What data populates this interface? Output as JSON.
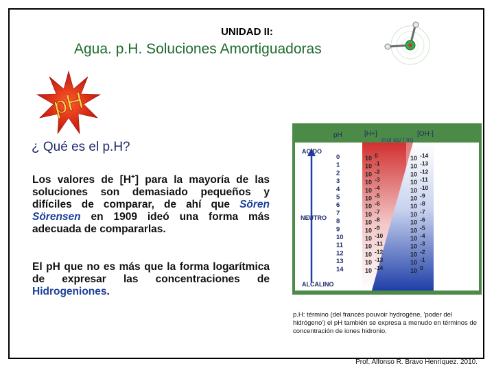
{
  "header": {
    "unit": "UNIDAD II:",
    "title": "Agua. p.H. Soluciones Amortiguadoras"
  },
  "badge": {
    "text": "pH",
    "color": "#e3241b"
  },
  "question": "¿ Qué es el p.H?",
  "paragraph1": {
    "a": "Los valores de [H",
    "sup": "+",
    "b": "] para la mayoría de las soluciones son demasiado pequeños y difíciles de comparar, de ahí que ",
    "name": "Sören Sörensen",
    "c": " en 1909 ideó una forma más adecuada de compararlas."
  },
  "paragraph2": {
    "a": "El pH que no es más que la forma logarítmica de expresar las concentraciones de ",
    "highlight": "Hidrogeniones",
    "b": "."
  },
  "scale": {
    "col_ph": "pH",
    "col_h": "[H+]",
    "col_oh": "[OH-]",
    "subtitle": "mol es/ l tro",
    "acido": "ACIDO",
    "neutro": "NEUTRO",
    "alcalino": "ALCALINO",
    "ph_values": [
      "0",
      "1",
      "2",
      "3",
      "4",
      "5",
      "6",
      "7",
      "8",
      "9",
      "10",
      "11",
      "12",
      "13",
      "14"
    ],
    "h_exp": [
      "0",
      "-1",
      "-2",
      "-3",
      "-4",
      "-5",
      "-6",
      "-7",
      "-8",
      "-9",
      "-10",
      "-11",
      "-12",
      "-13",
      "-14"
    ],
    "oh_exp": [
      "-14",
      "-13",
      "-12",
      "-11",
      "-10",
      "-9",
      "-8",
      "-7",
      "-6",
      "-5",
      "-4",
      "-3",
      "-2",
      "-1",
      "0"
    ],
    "base": "10",
    "colors": {
      "bg": "#4c8a47",
      "panel": "#ffffff",
      "acid": "#c62a2a",
      "base": "#1f3fa8"
    }
  },
  "caption": "p.H: término (del francés pouvoir hydrogène, 'poder del hidrógeno') el pH también se expresa a menudo en términos de concentración de iones hidronio.",
  "footer": "Prof. Alfonso R. Bravo Henríquez. 2010."
}
